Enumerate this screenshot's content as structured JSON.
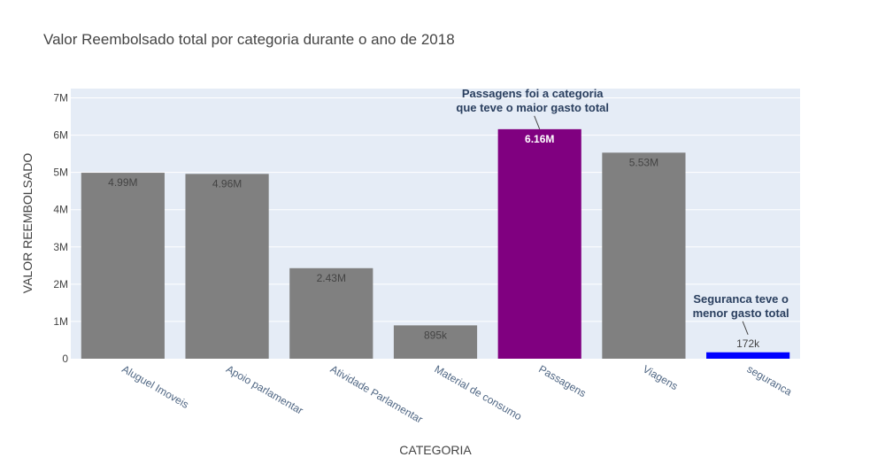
{
  "chart_data": {
    "type": "bar",
    "title": "Valor Reembolsado total por categoria durante o ano de 2018",
    "xlabel": "CATEGORIA",
    "ylabel": "VALOR REEMBOLSADO",
    "ylim": [
      0,
      7250000
    ],
    "yticks": [
      0,
      1000000,
      2000000,
      3000000,
      4000000,
      5000000,
      6000000,
      7000000
    ],
    "ytick_labels": [
      "0",
      "1M",
      "2M",
      "3M",
      "4M",
      "5M",
      "6M",
      "7M"
    ],
    "grid": true,
    "legend": "none",
    "categories": [
      "Aluguel Imoveis",
      "Apoio parlamentar",
      "Atividade Parlamentar",
      "Material de consumo",
      "Passagens",
      "Viagens",
      "seguranca"
    ],
    "values": [
      4990000,
      4960000,
      2430000,
      895000,
      6160000,
      5530000,
      172000
    ],
    "data_labels": [
      "4.99M",
      "4.96M",
      "2.43M",
      "895k",
      "6.16M",
      "5.53M",
      "172k"
    ],
    "colors": [
      "#808080",
      "#808080",
      "#808080",
      "#808080",
      "#800080",
      "#808080",
      "#0000ff"
    ],
    "annotations": [
      {
        "category": "Passagens",
        "lines": [
          "Passagens foi a categoria",
          "que teve o maior gasto total"
        ]
      },
      {
        "category": "seguranca",
        "lines": [
          "Seguranca teve o",
          "menor gasto total"
        ]
      }
    ]
  },
  "style": {
    "plot_bg": "#e5ecf6",
    "grid_color": "#ffffff",
    "label_inside_color": "#444444",
    "label_highlight_color": "#ffffff"
  }
}
